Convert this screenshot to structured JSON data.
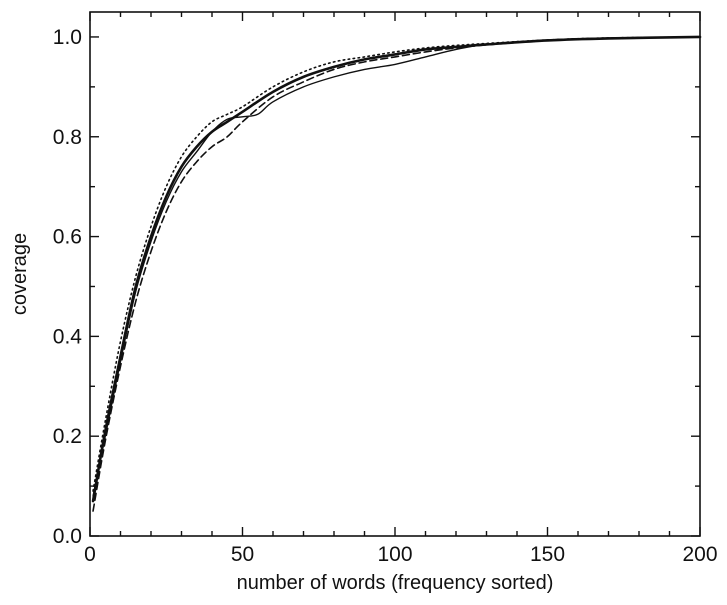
{
  "chart_data": {
    "type": "line",
    "title": "",
    "xlabel": "number of words (frequency sorted)",
    "ylabel": "coverage",
    "xlim": [
      0,
      200
    ],
    "ylim": [
      0.0,
      1.05
    ],
    "x_ticks": [
      0,
      50,
      100,
      150,
      200
    ],
    "x_tick_labels": [
      "0",
      "50",
      "100",
      "150",
      "200"
    ],
    "y_ticks": [
      0.0,
      0.2,
      0.4,
      0.6,
      0.8,
      1.0
    ],
    "y_tick_labels": [
      "0.0",
      "0.2",
      "0.4",
      "0.6",
      "0.8",
      "1.0"
    ],
    "grid": false,
    "legend": "none",
    "series": [
      {
        "style": "solid-thick",
        "x": [
          1,
          5,
          10,
          15,
          20,
          25,
          30,
          35,
          40,
          45,
          50,
          60,
          70,
          80,
          90,
          100,
          110,
          120,
          130,
          150,
          170,
          200
        ],
        "y": [
          0.07,
          0.21,
          0.36,
          0.5,
          0.6,
          0.68,
          0.74,
          0.78,
          0.81,
          0.83,
          0.85,
          0.89,
          0.92,
          0.94,
          0.955,
          0.965,
          0.975,
          0.98,
          0.985,
          0.993,
          0.997,
          1.0
        ]
      },
      {
        "style": "solid-thin",
        "x": [
          1,
          5,
          10,
          15,
          20,
          25,
          30,
          35,
          40,
          45,
          50,
          55,
          60,
          70,
          80,
          90,
          100,
          110,
          120,
          130,
          150,
          170,
          200
        ],
        "y": [
          0.08,
          0.2,
          0.35,
          0.49,
          0.59,
          0.67,
          0.73,
          0.77,
          0.81,
          0.835,
          0.84,
          0.845,
          0.87,
          0.9,
          0.92,
          0.935,
          0.945,
          0.96,
          0.975,
          0.985,
          0.994,
          0.998,
          1.0
        ]
      },
      {
        "style": "dashed",
        "x": [
          1,
          5,
          10,
          15,
          20,
          25,
          30,
          35,
          40,
          45,
          50,
          60,
          70,
          80,
          90,
          100,
          110,
          120,
          130,
          150,
          170,
          200
        ],
        "y": [
          0.05,
          0.19,
          0.34,
          0.47,
          0.57,
          0.65,
          0.71,
          0.75,
          0.78,
          0.8,
          0.83,
          0.88,
          0.91,
          0.935,
          0.95,
          0.96,
          0.97,
          0.978,
          0.984,
          0.993,
          0.997,
          1.0
        ]
      },
      {
        "style": "dotted",
        "x": [
          1,
          5,
          10,
          15,
          20,
          25,
          30,
          35,
          40,
          45,
          50,
          60,
          70,
          80,
          90,
          100,
          110,
          120,
          130,
          150,
          170,
          200
        ],
        "y": [
          0.09,
          0.23,
          0.39,
          0.52,
          0.62,
          0.7,
          0.76,
          0.8,
          0.83,
          0.845,
          0.86,
          0.9,
          0.93,
          0.95,
          0.96,
          0.97,
          0.978,
          0.983,
          0.987,
          0.994,
          0.998,
          1.0
        ]
      }
    ]
  }
}
